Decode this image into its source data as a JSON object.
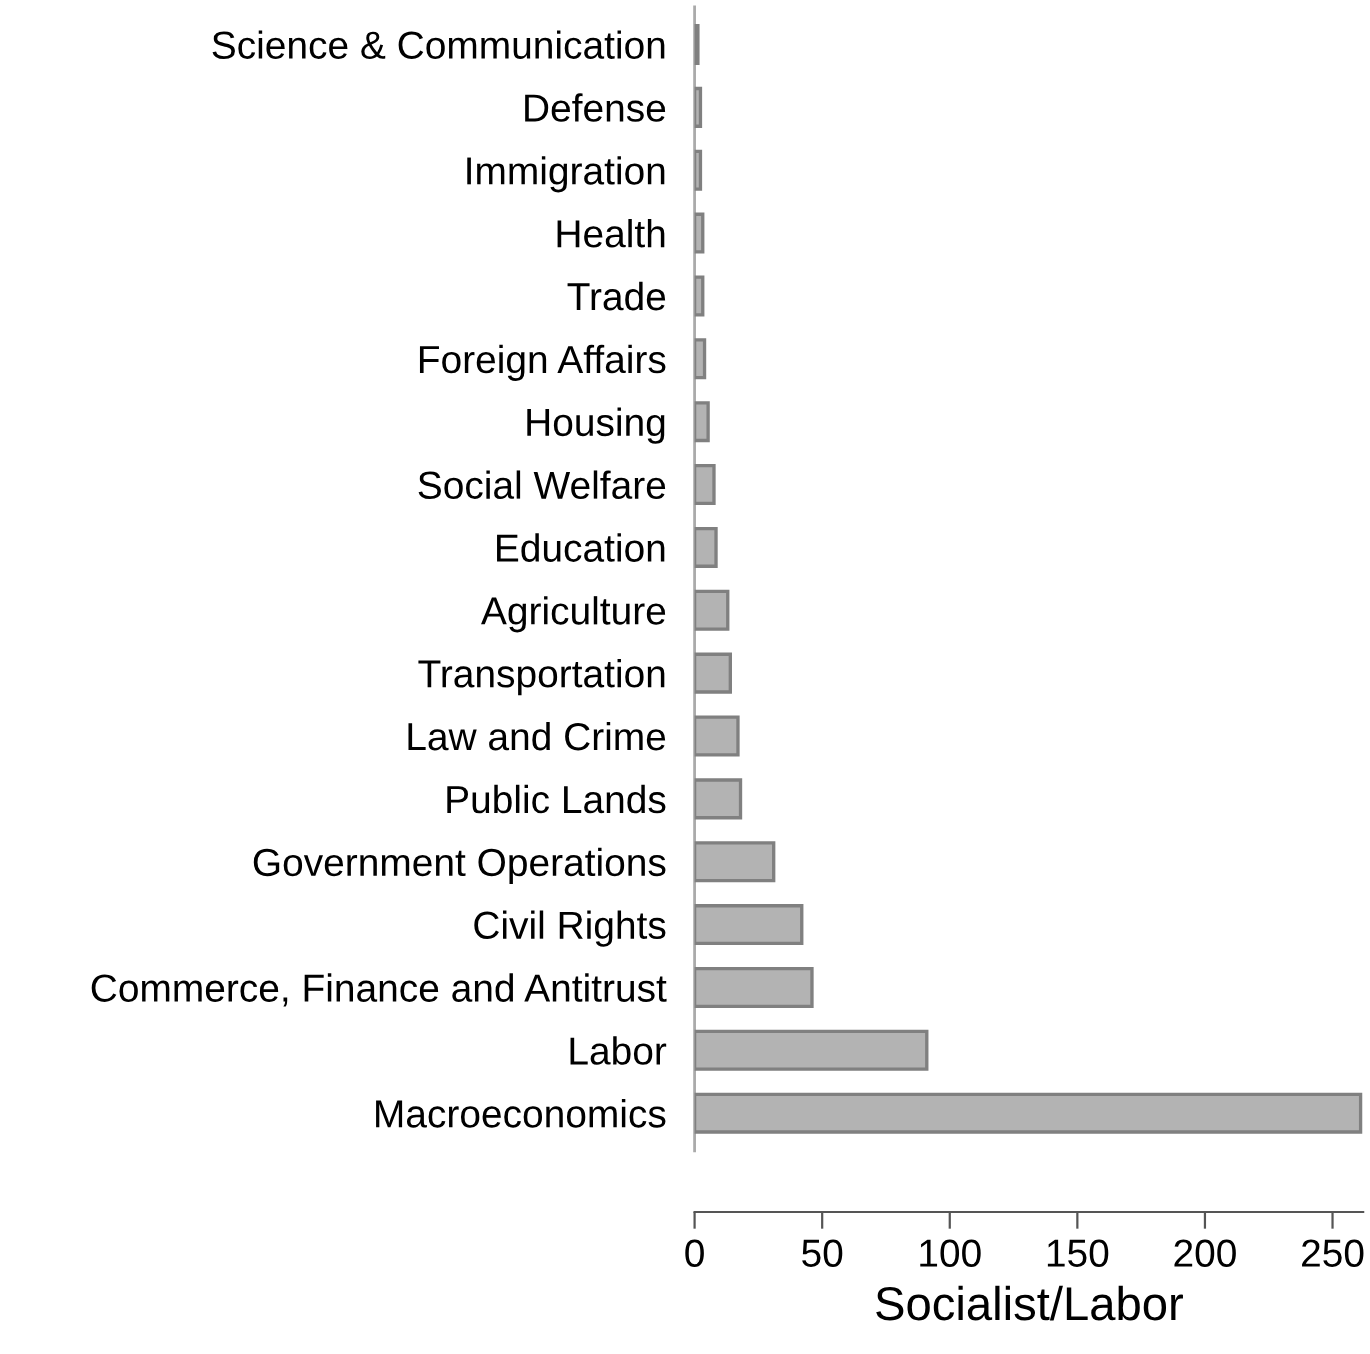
{
  "chart_data": {
    "type": "bar",
    "orientation": "horizontal",
    "xlabel": "Socialist/Labor",
    "categories": [
      "Science & Communication",
      "Defense",
      "Immigration",
      "Health",
      "Trade",
      "Foreign Affairs",
      "Housing",
      "Social Welfare",
      "Education",
      "Agriculture",
      "Transportation",
      "Law and Crime",
      "Public Lands",
      "Government Operations",
      "Civil Rights",
      "Commerce, Finance and Antitrust",
      "Labor",
      "Macroeconomics"
    ],
    "values": [
      1.3,
      2.3,
      2.3,
      3.2,
      3.2,
      3.9,
      5.3,
      7.6,
      8.4,
      13,
      14,
      17,
      18,
      31,
      42,
      46,
      91,
      261
    ],
    "color": "#b3b3b3",
    "xlim": [
      0,
      262
    ],
    "xticks": [
      0,
      50,
      100,
      150,
      200,
      250
    ],
    "grid": false,
    "legend": false
  }
}
